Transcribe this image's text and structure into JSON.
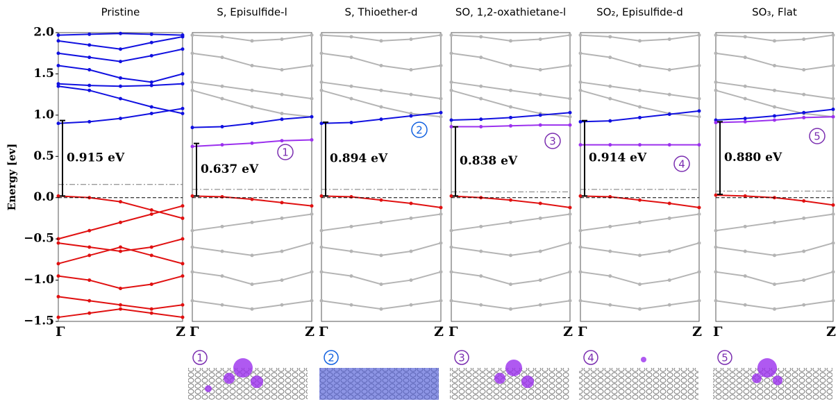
{
  "chart_data": [
    {
      "type": "line",
      "title": "Pristine",
      "y_label": "Energy [ev]",
      "categories": [
        "Γ",
        null,
        null,
        null,
        "Z"
      ],
      "ylim": [
        -1.5,
        2.0
      ],
      "yticks": [
        {
          "value": -1.5,
          "label": "−1.5"
        },
        {
          "value": -1.0,
          "label": "−1.0"
        },
        {
          "value": -0.5,
          "label": "−0.5"
        },
        {
          "value": 0.0,
          "label": "0.0"
        },
        0.5,
        {
          "value": 1.0,
          "label": "1.0"
        },
        1.5,
        {
          "value": 2.0,
          "label": "2.0"
        }
      ],
      "zero_line": 0,
      "fermi": 0.16,
      "gap_from": 0.02,
      "gap": 0.915,
      "gap_label": "0.915 eV",
      "series": [
        {
          "color": "#1010e0",
          "values": [
            0.9,
            0.92,
            0.96,
            1.02,
            1.08
          ]
        },
        {
          "color": "#1010e0",
          "values": [
            1.35,
            1.3,
            1.2,
            1.1,
            1.02
          ]
        },
        {
          "color": "#1010e0",
          "values": [
            1.38,
            1.36,
            1.35,
            1.36,
            1.38
          ]
        },
        {
          "color": "#1010e0",
          "values": [
            1.6,
            1.55,
            1.45,
            1.4,
            1.5
          ]
        },
        {
          "color": "#1010e0",
          "values": [
            1.75,
            1.7,
            1.65,
            1.72,
            1.8
          ]
        },
        {
          "color": "#1010e0",
          "values": [
            1.9,
            1.85,
            1.8,
            1.88,
            1.95
          ]
        },
        {
          "color": "#1010e0",
          "values": [
            1.97,
            1.98,
            1.99,
            1.98,
            1.97
          ]
        },
        {
          "color": "#e01010",
          "values": [
            0.02,
            0.0,
            -0.05,
            -0.15,
            -0.25
          ]
        },
        {
          "color": "#e01010",
          "values": [
            -0.5,
            -0.4,
            -0.3,
            -0.2,
            -0.1
          ]
        },
        {
          "color": "#e01010",
          "values": [
            -0.55,
            -0.6,
            -0.65,
            -0.6,
            -0.5
          ]
        },
        {
          "color": "#e01010",
          "values": [
            -0.8,
            -0.7,
            -0.6,
            -0.7,
            -0.8
          ]
        },
        {
          "color": "#e01010",
          "values": [
            -0.95,
            -1.0,
            -1.1,
            -1.05,
            -0.95
          ]
        },
        {
          "color": "#e01010",
          "values": [
            -1.2,
            -1.25,
            -1.3,
            -1.35,
            -1.3
          ]
        },
        {
          "color": "#e01010",
          "values": [
            -1.45,
            -1.4,
            -1.35,
            -1.4,
            -1.45
          ]
        }
      ]
    },
    {
      "type": "line",
      "title": "S, Episulfide-l",
      "categories": [
        "Γ",
        null,
        null,
        null,
        "Z"
      ],
      "ylim": [
        -1.5,
        2.0
      ],
      "zero_line": 0,
      "fermi": 0.1,
      "gap_from": 0.02,
      "gap": 0.637,
      "gap_label": "0.637 eV",
      "marker": "1",
      "marker_color": "#7a2db0",
      "series": [
        {
          "color": "#b4b4b4",
          "values": [
            1.97,
            1.95,
            1.9,
            1.92,
            1.97
          ]
        },
        {
          "color": "#b4b4b4",
          "values": [
            1.75,
            1.7,
            1.6,
            1.55,
            1.6
          ]
        },
        {
          "color": "#b4b4b4",
          "values": [
            1.4,
            1.35,
            1.3,
            1.25,
            1.2
          ]
        },
        {
          "color": "#b4b4b4",
          "values": [
            1.3,
            1.2,
            1.1,
            1.02,
            0.98
          ]
        },
        {
          "color": "#b4b4b4",
          "values": [
            -0.4,
            -0.35,
            -0.3,
            -0.25,
            -0.2
          ]
        },
        {
          "color": "#b4b4b4",
          "values": [
            -0.6,
            -0.65,
            -0.7,
            -0.65,
            -0.55
          ]
        },
        {
          "color": "#b4b4b4",
          "values": [
            -0.9,
            -0.95,
            -1.05,
            -1.0,
            -0.9
          ]
        },
        {
          "color": "#b4b4b4",
          "values": [
            -1.25,
            -1.3,
            -1.35,
            -1.3,
            -1.25
          ]
        },
        {
          "color": "#1010e0",
          "values": [
            0.85,
            0.86,
            0.9,
            0.95,
            0.98
          ]
        },
        {
          "color": "#9b30ee",
          "values": [
            0.62,
            0.64,
            0.66,
            0.69,
            0.7
          ]
        },
        {
          "color": "#e01010",
          "values": [
            0.02,
            0.01,
            -0.02,
            -0.06,
            -0.1
          ]
        }
      ]
    },
    {
      "type": "line",
      "title": "S, Thioether-d",
      "categories": [
        "Γ",
        null,
        null,
        null,
        "Z"
      ],
      "ylim": [
        -1.5,
        2.0
      ],
      "zero_line": 0,
      "fermi": 0.1,
      "gap_from": 0.02,
      "gap": 0.894,
      "gap_label": "0.894 eV",
      "marker": "2",
      "marker_color": "#1060e0",
      "series": [
        {
          "color": "#b4b4b4",
          "values": [
            1.97,
            1.95,
            1.9,
            1.92,
            1.97
          ]
        },
        {
          "color": "#b4b4b4",
          "values": [
            1.75,
            1.7,
            1.6,
            1.55,
            1.6
          ]
        },
        {
          "color": "#b4b4b4",
          "values": [
            1.4,
            1.35,
            1.3,
            1.25,
            1.2
          ]
        },
        {
          "color": "#b4b4b4",
          "values": [
            1.3,
            1.2,
            1.1,
            1.02,
            0.98
          ]
        },
        {
          "color": "#b4b4b4",
          "values": [
            -0.4,
            -0.35,
            -0.3,
            -0.25,
            -0.2
          ]
        },
        {
          "color": "#b4b4b4",
          "values": [
            -0.6,
            -0.65,
            -0.7,
            -0.65,
            -0.55
          ]
        },
        {
          "color": "#b4b4b4",
          "values": [
            -0.9,
            -0.95,
            -1.05,
            -1.0,
            -0.9
          ]
        },
        {
          "color": "#b4b4b4",
          "values": [
            -1.25,
            -1.3,
            -1.35,
            -1.3,
            -1.25
          ]
        },
        {
          "color": "#1010e0",
          "values": [
            0.9,
            0.91,
            0.95,
            0.99,
            1.03
          ]
        },
        {
          "color": "#e01010",
          "values": [
            0.02,
            0.01,
            -0.03,
            -0.07,
            -0.12
          ]
        }
      ]
    },
    {
      "type": "line",
      "title": "SO, 1,2-oxathietane-l",
      "categories": [
        "Γ",
        null,
        null,
        null,
        "Z"
      ],
      "ylim": [
        -1.5,
        2.0
      ],
      "zero_line": 0,
      "fermi": 0.07,
      "gap_from": 0.02,
      "gap": 0.838,
      "gap_label": "0.838 eV",
      "marker": "3",
      "marker_color": "#7a2db0",
      "series": [
        {
          "color": "#b4b4b4",
          "values": [
            1.97,
            1.95,
            1.9,
            1.92,
            1.97
          ]
        },
        {
          "color": "#b4b4b4",
          "values": [
            1.75,
            1.7,
            1.6,
            1.55,
            1.6
          ]
        },
        {
          "color": "#b4b4b4",
          "values": [
            1.4,
            1.35,
            1.3,
            1.25,
            1.2
          ]
        },
        {
          "color": "#b4b4b4",
          "values": [
            1.3,
            1.2,
            1.1,
            1.02,
            0.98
          ]
        },
        {
          "color": "#b4b4b4",
          "values": [
            -0.4,
            -0.35,
            -0.3,
            -0.25,
            -0.2
          ]
        },
        {
          "color": "#b4b4b4",
          "values": [
            -0.6,
            -0.65,
            -0.7,
            -0.65,
            -0.55
          ]
        },
        {
          "color": "#b4b4b4",
          "values": [
            -0.9,
            -0.95,
            -1.05,
            -1.0,
            -0.9
          ]
        },
        {
          "color": "#b4b4b4",
          "values": [
            -1.25,
            -1.3,
            -1.35,
            -1.3,
            -1.25
          ]
        },
        {
          "color": "#1010e0",
          "values": [
            0.94,
            0.95,
            0.97,
            1.0,
            1.03
          ]
        },
        {
          "color": "#9b30ee",
          "values": [
            0.86,
            0.86,
            0.87,
            0.88,
            0.88
          ]
        },
        {
          "color": "#e01010",
          "values": [
            0.02,
            0.0,
            -0.03,
            -0.07,
            -0.12
          ]
        }
      ]
    },
    {
      "type": "line",
      "title": "SO₂, Episulfide-d",
      "categories": [
        "Γ",
        null,
        null,
        null,
        "Z"
      ],
      "ylim": [
        -1.5,
        2.0
      ],
      "zero_line": 0,
      "fermi": 0.1,
      "gap_from": 0.02,
      "gap": 0.914,
      "gap_label": "0.914 eV",
      "marker": "4",
      "marker_color": "#7a2db0",
      "series": [
        {
          "color": "#b4b4b4",
          "values": [
            1.97,
            1.95,
            1.9,
            1.92,
            1.97
          ]
        },
        {
          "color": "#b4b4b4",
          "values": [
            1.75,
            1.7,
            1.6,
            1.55,
            1.6
          ]
        },
        {
          "color": "#b4b4b4",
          "values": [
            1.4,
            1.35,
            1.3,
            1.25,
            1.2
          ]
        },
        {
          "color": "#b4b4b4",
          "values": [
            1.3,
            1.2,
            1.1,
            1.02,
            0.98
          ]
        },
        {
          "color": "#b4b4b4",
          "values": [
            -0.4,
            -0.35,
            -0.3,
            -0.25,
            -0.2
          ]
        },
        {
          "color": "#b4b4b4",
          "values": [
            -0.6,
            -0.65,
            -0.7,
            -0.65,
            -0.55
          ]
        },
        {
          "color": "#b4b4b4",
          "values": [
            -0.9,
            -0.95,
            -1.05,
            -1.0,
            -0.9
          ]
        },
        {
          "color": "#b4b4b4",
          "values": [
            -1.25,
            -1.3,
            -1.35,
            -1.3,
            -1.25
          ]
        },
        {
          "color": "#1010e0",
          "values": [
            0.92,
            0.93,
            0.97,
            1.01,
            1.05
          ]
        },
        {
          "color": "#9b30ee",
          "values": [
            0.64,
            0.64,
            0.64,
            0.64,
            0.64
          ]
        },
        {
          "color": "#e01010",
          "values": [
            0.02,
            0.01,
            -0.03,
            -0.07,
            -0.12
          ]
        }
      ]
    },
    {
      "type": "line",
      "title": "SO₃, Flat",
      "categories": [
        "Γ",
        null,
        null,
        null,
        "Z"
      ],
      "ylim": [
        -1.5,
        2.0
      ],
      "zero_line": 0,
      "fermi": 0.08,
      "gap_from": 0.04,
      "gap": 0.88,
      "gap_label": "0.880 eV",
      "marker": "5",
      "marker_color": "#7a2db0",
      "series": [
        {
          "color": "#b4b4b4",
          "values": [
            1.97,
            1.95,
            1.9,
            1.92,
            1.97
          ]
        },
        {
          "color": "#b4b4b4",
          "values": [
            1.75,
            1.7,
            1.6,
            1.55,
            1.6
          ]
        },
        {
          "color": "#b4b4b4",
          "values": [
            1.4,
            1.35,
            1.3,
            1.25,
            1.2
          ]
        },
        {
          "color": "#b4b4b4",
          "values": [
            1.3,
            1.2,
            1.1,
            1.02,
            0.98
          ]
        },
        {
          "color": "#b4b4b4",
          "values": [
            -0.4,
            -0.35,
            -0.3,
            -0.25,
            -0.2
          ]
        },
        {
          "color": "#b4b4b4",
          "values": [
            -0.6,
            -0.65,
            -0.7,
            -0.65,
            -0.55
          ]
        },
        {
          "color": "#b4b4b4",
          "values": [
            -0.9,
            -0.95,
            -1.05,
            -1.0,
            -0.9
          ]
        },
        {
          "color": "#b4b4b4",
          "values": [
            -1.25,
            -1.3,
            -1.35,
            -1.3,
            -1.25
          ]
        },
        {
          "color": "#1010e0",
          "values": [
            0.94,
            0.96,
            0.99,
            1.03,
            1.07
          ]
        },
        {
          "color": "#9b30ee",
          "values": [
            0.91,
            0.92,
            0.94,
            0.97,
            0.98
          ]
        },
        {
          "color": "#e01010",
          "values": [
            0.03,
            0.02,
            0.0,
            -0.04,
            -0.09
          ]
        }
      ]
    }
  ]
}
